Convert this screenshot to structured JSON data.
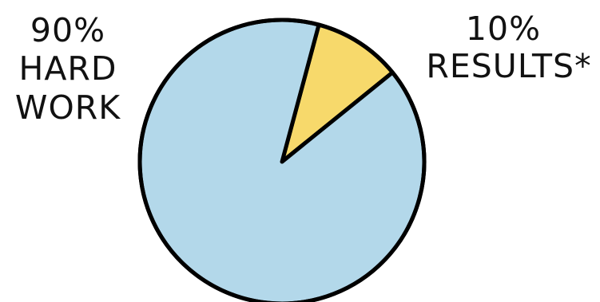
{
  "chart_data": {
    "type": "pie",
    "slices": [
      {
        "label_lines": [
          "10%",
          "RESULTS*"
        ],
        "value": 10,
        "color": "#f7d96b"
      },
      {
        "label_lines": [
          "90%",
          "HARD",
          "WORK"
        ],
        "value": 90,
        "color": "#b3d8ea"
      }
    ],
    "outline_color": "#000000",
    "legend": "none",
    "grid": false
  }
}
